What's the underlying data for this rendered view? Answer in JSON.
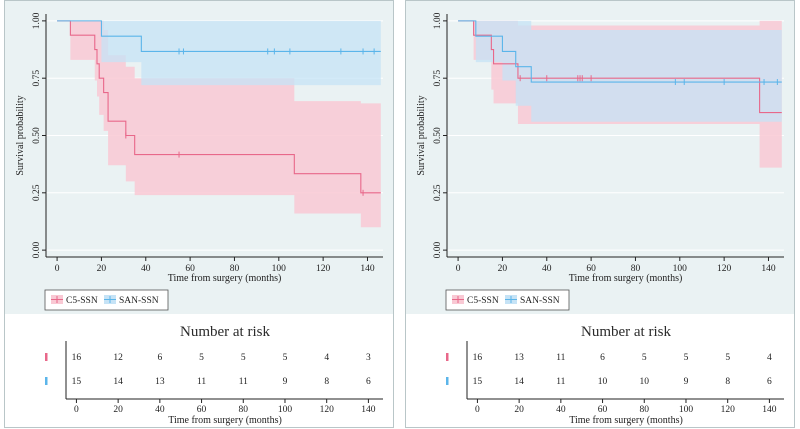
{
  "colors": {
    "c5": "#e8688a",
    "c5_fill": "#f9c9d4",
    "san": "#5bb5ea",
    "san_fill": "#c6e3f6",
    "overlap": "#cdc3e0",
    "panel_bg": "#eaf2f3",
    "grid": "#ffffff"
  },
  "chart_data": [
    {
      "type": "line",
      "ylabel": "Survival probability",
      "xlabel": "Time from surgery (months)",
      "xlim": [
        -5,
        147
      ],
      "ylim": [
        -0.03,
        1.03
      ],
      "xticks": [
        "0",
        "20",
        "40",
        "60",
        "80",
        "100",
        "120",
        "140"
      ],
      "yticks": [
        "0.00",
        "0.25",
        "0.50",
        "0.75",
        "1.00"
      ],
      "legend": [
        "C5-SSN",
        "SAN-SSN"
      ],
      "legend_position": "bottom-left",
      "series": [
        {
          "name": "C5-SSN",
          "steps": [
            [
              0,
              1.0
            ],
            [
              6,
              0.9375
            ],
            [
              17,
              0.875
            ],
            [
              18,
              0.8125
            ],
            [
              19,
              0.75
            ],
            [
              21,
              0.6875
            ],
            [
              23,
              0.5625
            ],
            [
              31,
              0.5
            ],
            [
              35,
              0.4167
            ],
            [
              107,
              0.3333
            ],
            [
              137,
              0.25
            ],
            [
              146,
              0.25
            ]
          ],
          "ci_steps": [
            [
              6,
              0.83,
              1.0
            ],
            [
              17,
              0.74,
              1.0
            ],
            [
              18,
              0.67,
              1.0
            ],
            [
              19,
              0.59,
              1.0
            ],
            [
              21,
              0.52,
              0.96
            ],
            [
              23,
              0.37,
              0.85
            ],
            [
              31,
              0.3,
              0.8
            ],
            [
              35,
              0.24,
              0.75
            ],
            [
              107,
              0.16,
              0.65
            ],
            [
              137,
              0.1,
              0.64
            ],
            [
              146,
              0.1,
              0.64
            ]
          ],
          "censored": [
            [
              55,
              0.4167
            ],
            [
              31,
              0.5
            ],
            [
              138,
              0.25
            ]
          ]
        },
        {
          "name": "SAN-SSN",
          "steps": [
            [
              0,
              1.0
            ],
            [
              20,
              0.9333
            ],
            [
              38,
              0.8667
            ],
            [
              146,
              0.8667
            ]
          ],
          "ci_steps": [
            [
              20,
              0.82,
              1.0
            ],
            [
              38,
              0.72,
              1.0
            ],
            [
              146,
              0.72,
              1.0
            ]
          ],
          "censored": [
            [
              55,
              0.8667
            ],
            [
              57,
              0.8667
            ],
            [
              95,
              0.8667
            ],
            [
              98,
              0.8667
            ],
            [
              105,
              0.8667
            ],
            [
              128,
              0.8667
            ],
            [
              138,
              0.8667
            ],
            [
              143,
              0.8667
            ]
          ]
        }
      ],
      "risk_table": {
        "title": "Number at risk",
        "times": [
          0,
          20,
          40,
          60,
          80,
          100,
          120,
          140
        ],
        "rows": [
          {
            "group": "C5-SSN",
            "counts": [
              16,
              12,
              6,
              5,
              5,
              5,
              4,
              3
            ]
          },
          {
            "group": "SAN-SSN",
            "counts": [
              15,
              14,
              13,
              11,
              11,
              9,
              8,
              6
            ]
          }
        ],
        "xlabel": "Time from surgery (months)"
      }
    },
    {
      "type": "line",
      "ylabel": "Survival probability",
      "xlabel": "Time from surgery (months)",
      "xlim": [
        -5,
        147
      ],
      "ylim": [
        -0.03,
        1.03
      ],
      "xticks": [
        "0",
        "20",
        "40",
        "60",
        "80",
        "100",
        "120",
        "140"
      ],
      "yticks": [
        "0.00",
        "0.25",
        "0.50",
        "0.75",
        "1.00"
      ],
      "legend": [
        "C5-SSN",
        "SAN-SSN"
      ],
      "legend_position": "bottom-left",
      "series": [
        {
          "name": "C5-SSN",
          "steps": [
            [
              0,
              1.0
            ],
            [
              7,
              0.9375
            ],
            [
              15,
              0.875
            ],
            [
              16,
              0.8125
            ],
            [
              27,
              0.75
            ],
            [
              136,
              0.6
            ],
            [
              146,
              0.6
            ]
          ],
          "ci_steps": [
            [
              7,
              0.83,
              1.0
            ],
            [
              15,
              0.7,
              1.0
            ],
            [
              16,
              0.64,
              1.0
            ],
            [
              27,
              0.55,
              0.98
            ],
            [
              136,
              0.36,
              1.0
            ],
            [
              146,
              0.36,
              1.0
            ]
          ],
          "censored": [
            [
              28,
              0.75
            ],
            [
              40,
              0.75
            ],
            [
              54,
              0.75
            ],
            [
              55,
              0.75
            ],
            [
              56,
              0.75
            ],
            [
              60,
              0.75
            ]
          ]
        },
        {
          "name": "SAN-SSN",
          "steps": [
            [
              0,
              1.0
            ],
            [
              8,
              0.9333
            ],
            [
              20,
              0.8667
            ],
            [
              26,
              0.8
            ],
            [
              33,
              0.7333
            ],
            [
              146,
              0.7333
            ]
          ],
          "ci_steps": [
            [
              8,
              0.82,
              1.0
            ],
            [
              20,
              0.74,
              1.0
            ],
            [
              26,
              0.63,
              1.0
            ],
            [
              33,
              0.56,
              0.96
            ],
            [
              146,
              0.56,
              0.96
            ]
          ],
          "censored": [
            [
              98,
              0.7333
            ],
            [
              102,
              0.7333
            ],
            [
              120,
              0.7333
            ],
            [
              138,
              0.7333
            ],
            [
              144,
              0.7333
            ]
          ]
        }
      ],
      "risk_table": {
        "title": "Number at risk",
        "times": [
          0,
          20,
          40,
          60,
          80,
          100,
          120,
          140
        ],
        "rows": [
          {
            "group": "C5-SSN",
            "counts": [
              16,
              13,
              11,
              6,
              5,
              5,
              5,
              4
            ]
          },
          {
            "group": "SAN-SSN",
            "counts": [
              15,
              14,
              11,
              10,
              10,
              9,
              8,
              6
            ]
          }
        ],
        "xlabel": "Time from surgery (months)"
      }
    }
  ]
}
